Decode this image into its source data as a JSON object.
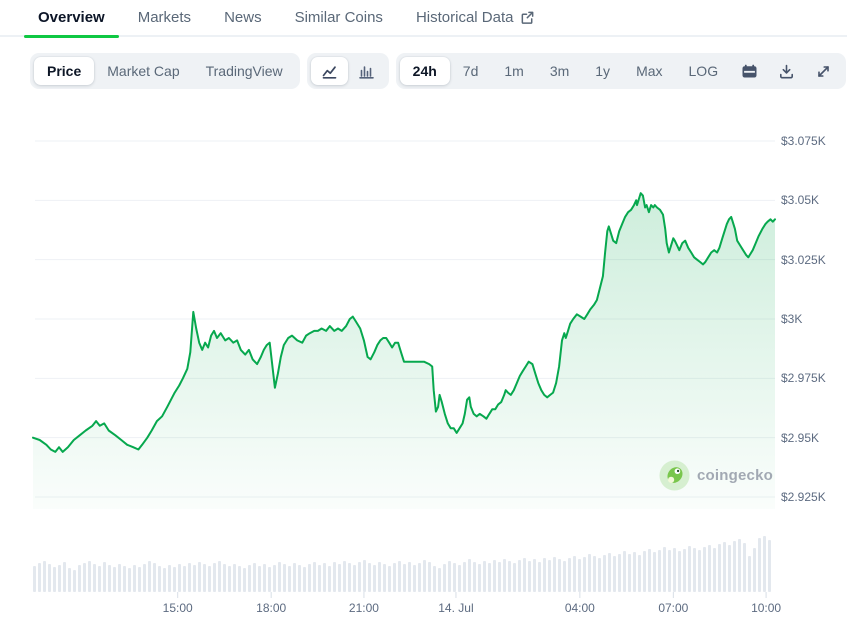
{
  "tabs": {
    "items": [
      {
        "label": "Overview",
        "active": true
      },
      {
        "label": "Markets",
        "active": false
      },
      {
        "label": "News",
        "active": false
      },
      {
        "label": "Similar Coins",
        "active": false
      },
      {
        "label": "Historical Data",
        "active": false,
        "external_link": true
      }
    ]
  },
  "toolbar": {
    "metric_group": {
      "options": [
        "Price",
        "Market Cap",
        "TradingView"
      ],
      "selected": "Price"
    },
    "chart_type_group": {
      "options": [
        "line-chart",
        "bar-chart"
      ],
      "selected": "line-chart"
    },
    "range_group": {
      "options": [
        "24h",
        "7d",
        "1m",
        "3m",
        "1y",
        "Max",
        "LOG"
      ],
      "selected": "24h",
      "icon_buttons": [
        "calendar",
        "download",
        "fullscreen"
      ]
    }
  },
  "watermark": {
    "label": "coingecko"
  },
  "colors": {
    "accent_green": "#0fc843",
    "chart_line": "#07a84e",
    "fill_top": "rgba(7,168,78,0.20)",
    "fill_bottom": "rgba(7,168,78,0.02)",
    "grid_line": "#eef1f4",
    "axis_text": "#5d6b81",
    "volume_bar": "#e3e8ee",
    "tick_mark": "#d8dfe7"
  },
  "chart_data": {
    "type": "area",
    "currency": "USD",
    "timeframe": "24h",
    "grid": "horizontal",
    "legend": "none",
    "ylim": [
      2925,
      3075
    ],
    "y_axis": {
      "values": [
        3075,
        3050,
        3025,
        3000,
        2975,
        2950,
        2925
      ],
      "labels": [
        "$3.075K",
        "$3.05K",
        "$3.025K",
        "$3K",
        "$2.975K",
        "$2.95K",
        "$2.925K"
      ]
    },
    "x_axis": {
      "note": "t is position in the 24h window, per mille (0-1000)",
      "ticks": [
        {
          "t": 195,
          "label": "15:00"
        },
        {
          "t": 321,
          "label": "18:00"
        },
        {
          "t": 446,
          "label": "21:00"
        },
        {
          "t": 570,
          "label": "14. Jul"
        },
        {
          "t": 737,
          "label": "04:00"
        },
        {
          "t": 863,
          "label": "07:00"
        },
        {
          "t": 988,
          "label": "10:00"
        }
      ]
    },
    "series": [
      {
        "name": "Price",
        "points": [
          [
            0,
            2950
          ],
          [
            9,
            2949
          ],
          [
            18,
            2947
          ],
          [
            24,
            2945
          ],
          [
            30,
            2944
          ],
          [
            35,
            2946
          ],
          [
            40,
            2944
          ],
          [
            47,
            2946
          ],
          [
            55,
            2949
          ],
          [
            63,
            2951
          ],
          [
            71,
            2953
          ],
          [
            80,
            2955
          ],
          [
            85,
            2957
          ],
          [
            90,
            2955
          ],
          [
            96,
            2956
          ],
          [
            102,
            2953
          ],
          [
            111,
            2951
          ],
          [
            119,
            2949
          ],
          [
            127,
            2947
          ],
          [
            135,
            2946
          ],
          [
            142,
            2945
          ],
          [
            147,
            2947
          ],
          [
            154,
            2950
          ],
          [
            160,
            2953
          ],
          [
            167,
            2957
          ],
          [
            174,
            2959
          ],
          [
            181,
            2963
          ],
          [
            186,
            2966
          ],
          [
            191,
            2969
          ],
          [
            197,
            2972
          ],
          [
            202,
            2975
          ],
          [
            208,
            2979
          ],
          [
            212,
            2986
          ],
          [
            216,
            3003
          ],
          [
            220,
            2996
          ],
          [
            224,
            2990
          ],
          [
            228,
            2987
          ],
          [
            232,
            2990
          ],
          [
            236,
            2988
          ],
          [
            240,
            2993
          ],
          [
            244,
            2995
          ],
          [
            248,
            2992
          ],
          [
            253,
            2994
          ],
          [
            259,
            2991
          ],
          [
            264,
            2992
          ],
          [
            270,
            2990
          ],
          [
            275,
            2991
          ],
          [
            280,
            2987
          ],
          [
            286,
            2985
          ],
          [
            291,
            2987
          ],
          [
            296,
            2983
          ],
          [
            302,
            2981
          ],
          [
            307,
            2984
          ],
          [
            311,
            2987
          ],
          [
            315,
            2989
          ],
          [
            319,
            2990
          ],
          [
            322,
            2982
          ],
          [
            326,
            2971
          ],
          [
            330,
            2977
          ],
          [
            334,
            2984
          ],
          [
            338,
            2989
          ],
          [
            344,
            2992
          ],
          [
            349,
            2993
          ],
          [
            356,
            2991
          ],
          [
            363,
            2990
          ],
          [
            368,
            2993
          ],
          [
            373,
            2994
          ],
          [
            379,
            2995
          ],
          [
            384,
            2995
          ],
          [
            389,
            2996
          ],
          [
            395,
            2995
          ],
          [
            400,
            2997
          ],
          [
            406,
            2995
          ],
          [
            411,
            2996
          ],
          [
            416,
            2995
          ],
          [
            422,
            2997
          ],
          [
            427,
            3000
          ],
          [
            431,
            3001
          ],
          [
            435,
            2999
          ],
          [
            441,
            2996
          ],
          [
            446,
            2991
          ],
          [
            451,
            2984
          ],
          [
            455,
            2983
          ],
          [
            460,
            2986
          ],
          [
            464,
            2989
          ],
          [
            468,
            2991
          ],
          [
            472,
            2992
          ],
          [
            476,
            2992
          ],
          [
            480,
            2990
          ],
          [
            484,
            2988
          ],
          [
            488,
            2990
          ],
          [
            492,
            2990
          ],
          [
            496,
            2986
          ],
          [
            500,
            2982
          ],
          [
            507,
            2982
          ],
          [
            513,
            2982
          ],
          [
            520,
            2982
          ],
          [
            527,
            2982
          ],
          [
            534,
            2981
          ],
          [
            538,
            2980
          ],
          [
            540,
            2970
          ],
          [
            543,
            2961
          ],
          [
            546,
            2963
          ],
          [
            548,
            2968
          ],
          [
            551,
            2965
          ],
          [
            555,
            2960
          ],
          [
            559,
            2956
          ],
          [
            563,
            2954
          ],
          [
            567,
            2954
          ],
          [
            571,
            2952
          ],
          [
            575,
            2954
          ],
          [
            579,
            2956
          ],
          [
            582,
            2960
          ],
          [
            585,
            2966
          ],
          [
            588,
            2967
          ],
          [
            590,
            2963
          ],
          [
            594,
            2960
          ],
          [
            598,
            2959
          ],
          [
            602,
            2960
          ],
          [
            607,
            2959
          ],
          [
            611,
            2958
          ],
          [
            615,
            2960
          ],
          [
            619,
            2962
          ],
          [
            623,
            2962
          ],
          [
            627,
            2964
          ],
          [
            631,
            2965
          ],
          [
            635,
            2968
          ],
          [
            637,
            2970
          ],
          [
            640,
            2969
          ],
          [
            644,
            2968
          ],
          [
            648,
            2970
          ],
          [
            652,
            2973
          ],
          [
            656,
            2976
          ],
          [
            660,
            2978
          ],
          [
            664,
            2980
          ],
          [
            668,
            2982
          ],
          [
            673,
            2981
          ],
          [
            677,
            2977
          ],
          [
            681,
            2973
          ],
          [
            685,
            2970
          ],
          [
            689,
            2968
          ],
          [
            693,
            2967
          ],
          [
            697,
            2968
          ],
          [
            701,
            2969
          ],
          [
            705,
            2973
          ],
          [
            709,
            2980
          ],
          [
            713,
            2991
          ],
          [
            716,
            2994
          ],
          [
            718,
            2992
          ],
          [
            721,
            2995
          ],
          [
            724,
            2998
          ],
          [
            728,
            3000
          ],
          [
            733,
            3002
          ],
          [
            738,
            3001
          ],
          [
            743,
            3000
          ],
          [
            747,
            3002
          ],
          [
            751,
            3004
          ],
          [
            756,
            3006
          ],
          [
            760,
            3008
          ],
          [
            764,
            3013
          ],
          [
            768,
            3018
          ],
          [
            771,
            3028
          ],
          [
            774,
            3037
          ],
          [
            776,
            3039
          ],
          [
            779,
            3036
          ],
          [
            782,
            3033
          ],
          [
            786,
            3032
          ],
          [
            790,
            3037
          ],
          [
            794,
            3040
          ],
          [
            798,
            3043
          ],
          [
            802,
            3045
          ],
          [
            806,
            3046
          ],
          [
            810,
            3048
          ],
          [
            813,
            3050
          ],
          [
            814,
            3048
          ],
          [
            817,
            3051
          ],
          [
            819,
            3053
          ],
          [
            822,
            3052
          ],
          [
            825,
            3047
          ],
          [
            827,
            3048
          ],
          [
            830,
            3045
          ],
          [
            833,
            3048
          ],
          [
            836,
            3047
          ],
          [
            838,
            3048
          ],
          [
            841,
            3047
          ],
          [
            845,
            3046
          ],
          [
            849,
            3044
          ],
          [
            852,
            3038
          ],
          [
            854,
            3032
          ],
          [
            857,
            3028
          ],
          [
            860,
            3031
          ],
          [
            863,
            3034
          ],
          [
            865,
            3033
          ],
          [
            868,
            3031
          ],
          [
            871,
            3029
          ],
          [
            875,
            3032
          ],
          [
            879,
            3033
          ],
          [
            883,
            3030
          ],
          [
            887,
            3028
          ],
          [
            891,
            3026
          ],
          [
            895,
            3025
          ],
          [
            899,
            3024
          ],
          [
            903,
            3023
          ],
          [
            906,
            3024
          ],
          [
            910,
            3026
          ],
          [
            914,
            3028
          ],
          [
            918,
            3029
          ],
          [
            922,
            3028
          ],
          [
            925,
            3030
          ],
          [
            929,
            3034
          ],
          [
            933,
            3038
          ],
          [
            935,
            3040
          ],
          [
            938,
            3042
          ],
          [
            941,
            3043
          ],
          [
            943,
            3041
          ],
          [
            946,
            3038
          ],
          [
            949,
            3033
          ],
          [
            953,
            3031
          ],
          [
            957,
            3029
          ],
          [
            961,
            3027
          ],
          [
            964,
            3026
          ],
          [
            966,
            3027
          ],
          [
            970,
            3029
          ],
          [
            974,
            3032
          ],
          [
            978,
            3035
          ],
          [
            983,
            3038
          ],
          [
            987,
            3040
          ],
          [
            990,
            3041
          ],
          [
            994,
            3042
          ],
          [
            997,
            3041
          ],
          [
            1000,
            3042
          ]
        ]
      }
    ],
    "volume_bars": [
      26,
      29,
      31,
      28,
      25,
      27,
      30,
      24,
      22,
      27,
      29,
      31,
      28,
      26,
      30,
      27,
      25,
      28,
      26,
      24,
      27,
      25,
      28,
      31,
      29,
      26,
      24,
      27,
      25,
      28,
      26,
      29,
      27,
      30,
      28,
      26,
      29,
      31,
      28,
      26,
      28,
      26,
      24,
      27,
      29,
      26,
      28,
      25,
      27,
      30,
      28,
      26,
      29,
      27,
      25,
      28,
      30,
      27,
      29,
      26,
      30,
      28,
      31,
      29,
      27,
      30,
      32,
      29,
      27,
      30,
      28,
      26,
      29,
      31,
      28,
      30,
      27,
      29,
      32,
      30,
      26,
      24,
      28,
      31,
      29,
      27,
      30,
      33,
      30,
      28,
      31,
      29,
      32,
      30,
      33,
      31,
      29,
      32,
      34,
      31,
      33,
      30,
      34,
      32,
      35,
      33,
      31,
      34,
      36,
      33,
      35,
      38,
      36,
      34,
      37,
      39,
      36,
      38,
      41,
      38,
      40,
      37,
      41,
      43,
      40,
      42,
      45,
      42,
      44,
      41,
      43,
      46,
      44,
      42,
      45,
      47,
      44,
      48,
      50,
      47,
      51,
      53,
      49,
      36,
      44,
      54,
      56,
      52
    ]
  }
}
